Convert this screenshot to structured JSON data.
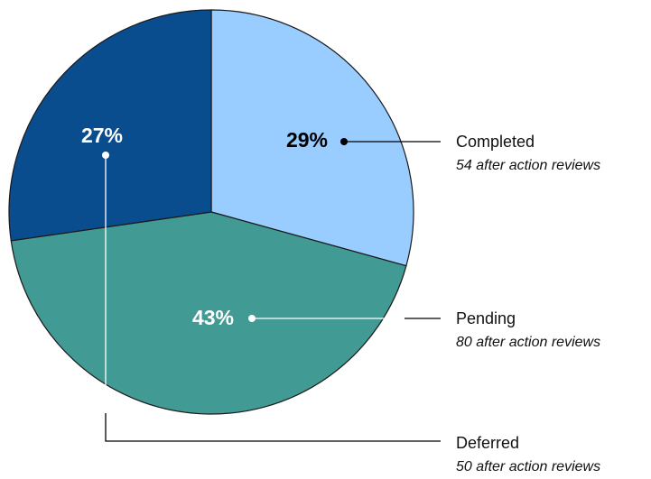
{
  "chart_data": {
    "type": "pie",
    "categories": [
      "Completed",
      "Pending",
      "Deferred"
    ],
    "values": [
      29,
      43,
      27
    ],
    "value_labels": [
      "29%",
      "43%",
      "27%"
    ],
    "descriptions": [
      "54 after action reviews",
      "80 after action reviews",
      "50 after action reviews"
    ],
    "colors": [
      "#99ccff",
      "#419a93",
      "#0a4d8f"
    ],
    "label_colors": [
      "#000000",
      "#ffffff",
      "#ffffff"
    ]
  }
}
